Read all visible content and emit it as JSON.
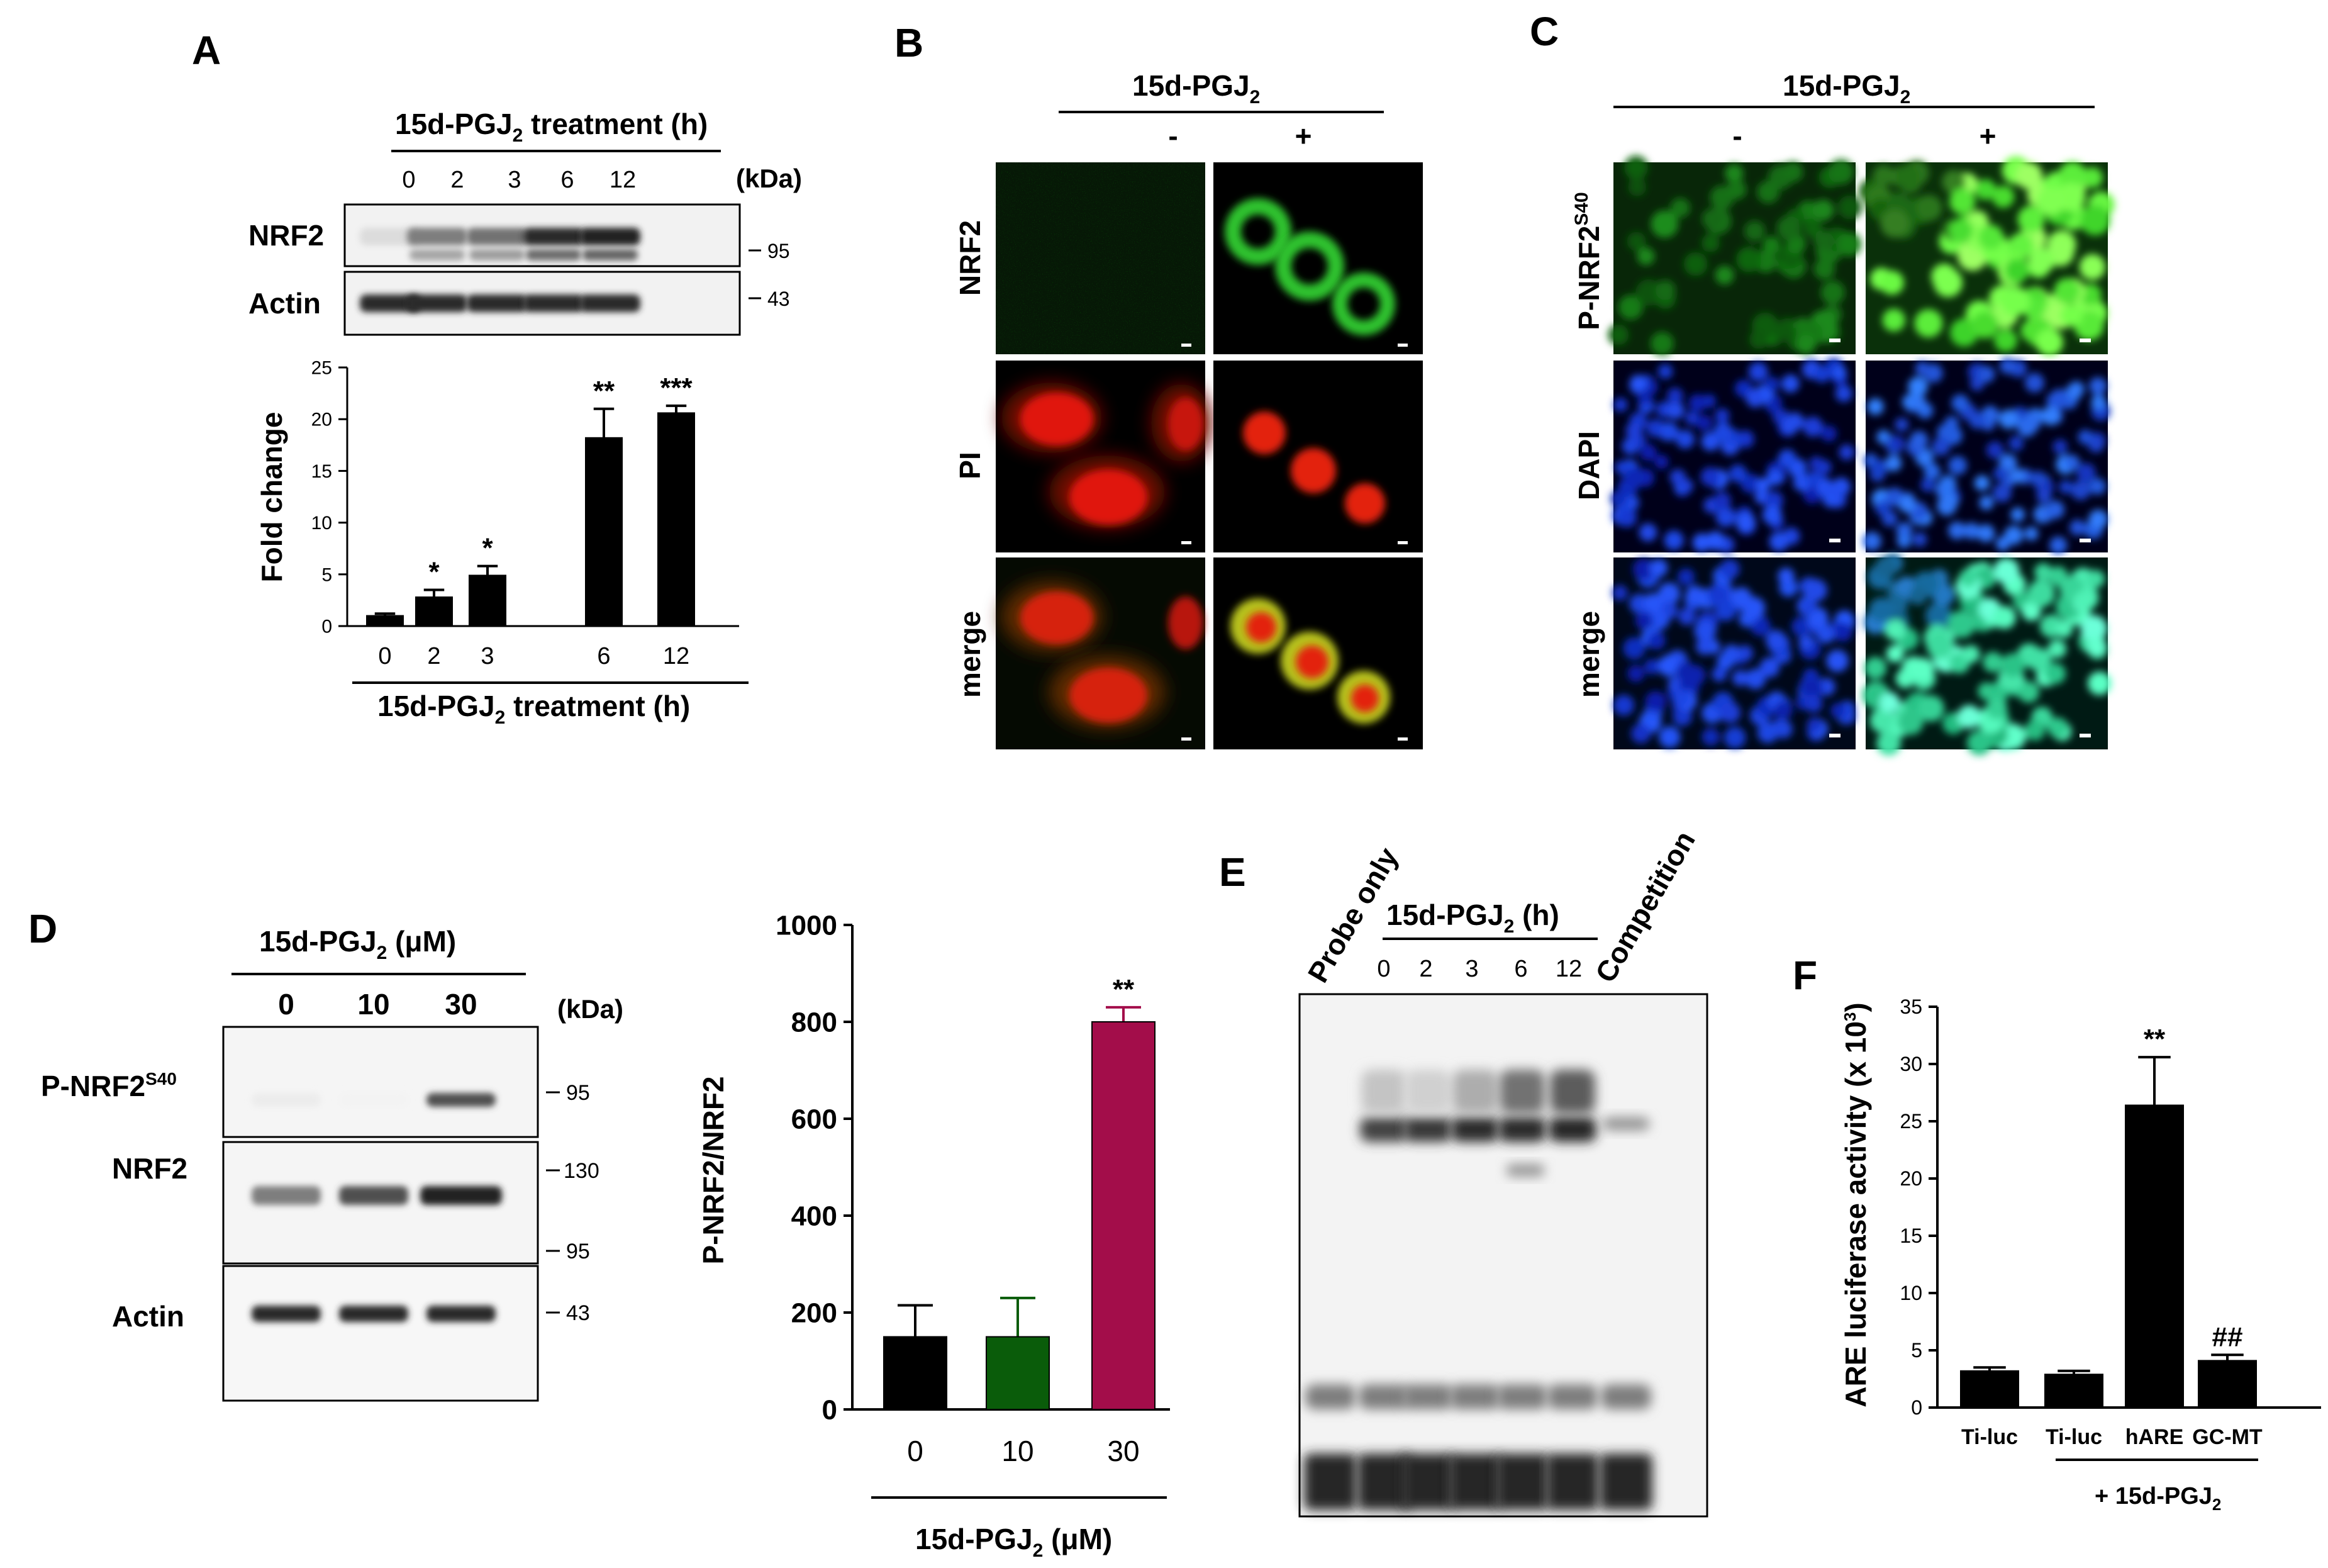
{
  "panels": {
    "a": {
      "label": "A",
      "blot_title_main": "15d-PGJ",
      "blot_title_sub": "2",
      "blot_title_end": " treatment (h)",
      "lanes": [
        "0",
        "2",
        "3",
        "6",
        "12"
      ],
      "kda_label": "(kDa)",
      "rows": [
        {
          "label": "NRF2",
          "marker": "95",
          "intensity": [
            0.15,
            0.55,
            0.6,
            0.9,
            0.95
          ]
        },
        {
          "label": "Actin",
          "marker": "43",
          "intensity": [
            0.9,
            0.9,
            0.9,
            0.9,
            0.9
          ]
        }
      ]
    },
    "b": {
      "label": "B",
      "treatment_main": "15d-PGJ",
      "treatment_sub": "2",
      "cond_minus": "-",
      "cond_plus": "+",
      "rows": [
        "NRF2",
        "PI",
        "merge"
      ]
    },
    "c": {
      "label": "C",
      "treatment_main": "15d-PGJ",
      "treatment_sub": "2",
      "cond_minus": "-",
      "cond_plus": "+",
      "row1_main": "P-NRF2",
      "row1_sup": "S40",
      "rows": [
        "DAPI",
        "merge"
      ]
    },
    "d": {
      "label": "D",
      "blot_title_main": "15d-PGJ",
      "blot_title_sub": "2",
      "blot_title_end": " (μM)",
      "lanes": [
        "0",
        "10",
        "30"
      ],
      "kda_label": "(kDa)",
      "row1_main": "P-NRF2",
      "row1_sup": "S40",
      "row2": "NRF2",
      "row3": "Actin",
      "markers": {
        "p95": "95",
        "n130": "130",
        "n95": "95",
        "a43": "43"
      },
      "intensity": {
        "p": [
          0.08,
          0.05,
          0.75
        ],
        "n": [
          0.55,
          0.75,
          0.95
        ],
        "a": [
          0.9,
          0.9,
          0.9
        ]
      }
    },
    "e": {
      "label": "E",
      "probe": "Probe only",
      "competition": "Competition",
      "time_main": "15d-PGJ",
      "time_sub": "2",
      "time_end": " (h)",
      "lanes": [
        "0",
        "2",
        "3",
        "6",
        "12"
      ]
    },
    "f": {
      "label": "F",
      "sub_main": "+ 15d-PGJ",
      "sub_sub": "2"
    }
  },
  "chart_data": [
    {
      "type": "bar",
      "panel": "A",
      "categories": [
        "0",
        "2",
        "3",
        "6",
        "12"
      ],
      "values": [
        1.0,
        2.8,
        4.9,
        18.2,
        20.6
      ],
      "errors": [
        0.2,
        0.7,
        0.9,
        2.8,
        0.7
      ],
      "significance": [
        "",
        "*",
        "*",
        "**",
        "***"
      ],
      "colors": [
        "#000000",
        "#000000",
        "#000000",
        "#000000",
        "#000000"
      ],
      "ylabel": "Fold change",
      "xlabel_main": "15d-PGJ",
      "xlabel_sub": "2",
      "xlabel_end": " treatment (h)",
      "ylim": [
        0,
        25
      ],
      "yticks": [
        "0",
        "5",
        "10",
        "15",
        "20",
        "25"
      ]
    },
    {
      "type": "bar",
      "panel": "D",
      "categories": [
        "0",
        "10",
        "30"
      ],
      "values": [
        150,
        150,
        800
      ],
      "errors": [
        65,
        80,
        30
      ],
      "significance": [
        "",
        "",
        "**"
      ],
      "colors": [
        "#000000",
        "#0a5c0a",
        "#a30d4a"
      ],
      "ylabel": "P-NRF2/NRF2",
      "xlabel_main": "15d-PGJ",
      "xlabel_sub": "2",
      "xlabel_end": " (μM)",
      "ylim": [
        0,
        1000
      ],
      "yticks": [
        "0",
        "200",
        "400",
        "600",
        "800",
        "1000"
      ]
    },
    {
      "type": "bar",
      "panel": "F",
      "categories": [
        "Ti-luc",
        "Ti-luc",
        "hARE",
        "GC-MT"
      ],
      "values": [
        3.2,
        2.9,
        26.4,
        4.1
      ],
      "errors": [
        0.3,
        0.3,
        4.2,
        0.5
      ],
      "significance": [
        "",
        "",
        "**",
        "##"
      ],
      "colors": [
        "#000000",
        "#000000",
        "#000000",
        "#000000"
      ],
      "ylabel_main": "ARE luciferase  activity (x 10",
      "ylabel_sup": "3",
      "ylabel_end": ")",
      "ylim": [
        0,
        35
      ],
      "yticks": [
        "0",
        "5",
        "10",
        "15",
        "20",
        "25",
        "30",
        "35"
      ]
    }
  ]
}
